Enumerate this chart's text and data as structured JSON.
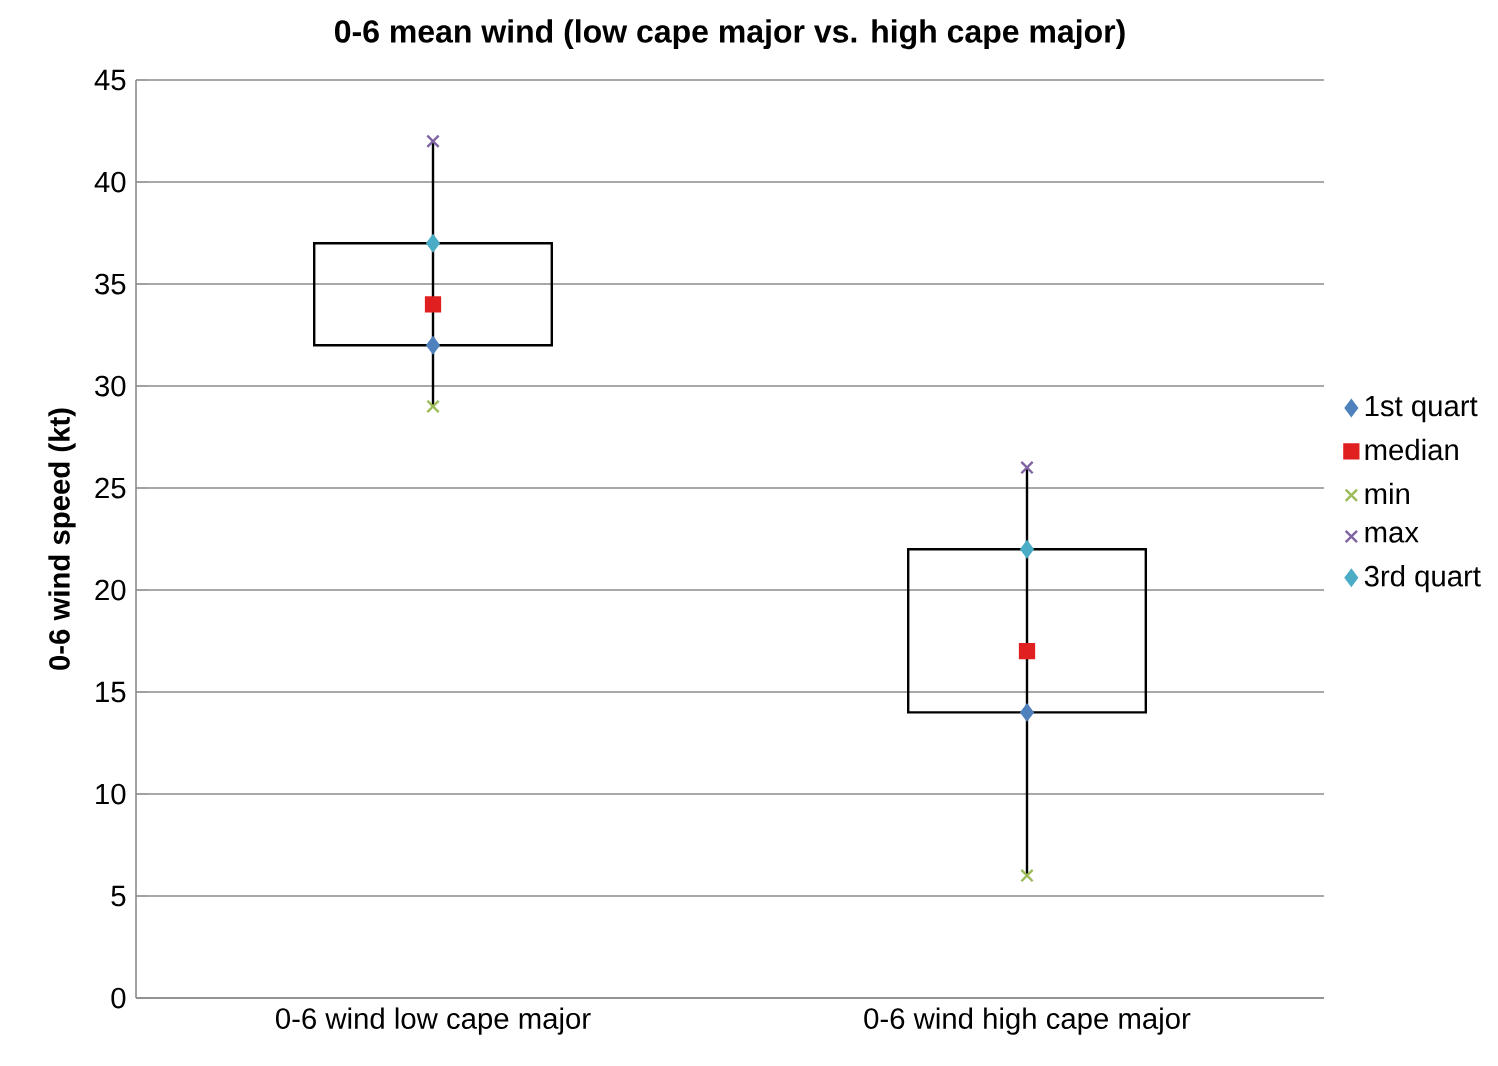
{
  "chart_data": {
    "type": "box",
    "title": "0-6 mean wind (low cape major vs. high cape major)",
    "ylabel": "0-6 wind speed (kt)",
    "categories": [
      "0-6 wind low cape major",
      "0-6 wind high cape major"
    ],
    "boxes": [
      {
        "low": 29,
        "q1": 32,
        "q3": 37,
        "high": 42
      },
      {
        "low": 6,
        "q1": 14,
        "q3": 22,
        "high": 26
      }
    ],
    "series": [
      {
        "name": "1st quart",
        "type": "scatter",
        "marker": "diamond",
        "color": "#4f81bd",
        "values": [
          32,
          14
        ]
      },
      {
        "name": "median",
        "type": "scatter",
        "marker": "square",
        "color": "#e02020",
        "values": [
          34,
          17
        ]
      },
      {
        "name": "min",
        "type": "scatter",
        "marker": "cross",
        "color": "#9bbb59",
        "values": [
          29,
          6
        ]
      },
      {
        "name": "max",
        "type": "scatter",
        "marker": "cross",
        "color": "#8064a2",
        "values": [
          42,
          26
        ]
      },
      {
        "name": "3rd quart",
        "type": "scatter",
        "marker": "diamond",
        "color": "#4bacc6",
        "values": [
          37,
          22
        ]
      }
    ],
    "ylim": [
      0,
      45
    ],
    "yticks": [
      0,
      5,
      10,
      15,
      20,
      25,
      30,
      35,
      40,
      45
    ],
    "grid": "y",
    "legend": "right"
  }
}
